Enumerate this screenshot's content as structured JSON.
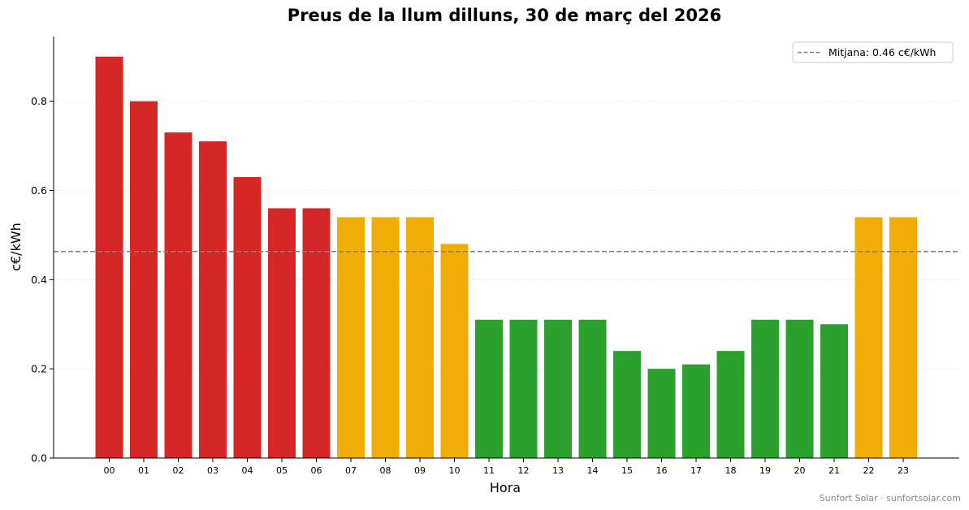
{
  "chart_data": {
    "type": "bar",
    "title": "Preus de la llum dilluns, 30 de març del 2026",
    "xlabel": "Hora",
    "ylabel": "c€/kWh",
    "categories": [
      "00",
      "01",
      "02",
      "03",
      "04",
      "05",
      "06",
      "07",
      "08",
      "09",
      "10",
      "11",
      "12",
      "13",
      "14",
      "15",
      "16",
      "17",
      "18",
      "19",
      "20",
      "21",
      "22",
      "23"
    ],
    "values": [
      0.9,
      0.8,
      0.73,
      0.71,
      0.63,
      0.56,
      0.56,
      0.54,
      0.54,
      0.54,
      0.48,
      0.31,
      0.31,
      0.31,
      0.31,
      0.24,
      0.2,
      0.21,
      0.24,
      0.31,
      0.31,
      0.3,
      0.54,
      0.54
    ],
    "bar_colors": [
      "#d62728",
      "#d62728",
      "#d62728",
      "#d62728",
      "#d62728",
      "#d62728",
      "#d62728",
      "#f0ad05",
      "#f0ad05",
      "#f0ad05",
      "#f0ad05",
      "#2ca02c",
      "#2ca02c",
      "#2ca02c",
      "#2ca02c",
      "#2ca02c",
      "#2ca02c",
      "#2ca02c",
      "#2ca02c",
      "#2ca02c",
      "#2ca02c",
      "#2ca02c",
      "#f0ad05",
      "#f0ad05"
    ],
    "ylim": [
      0,
      0.945
    ],
    "yticks": [
      0.0,
      0.2,
      0.4,
      0.6,
      0.8
    ],
    "ytick_labels": [
      "0.0",
      "0.2",
      "0.4",
      "0.6",
      "0.8"
    ],
    "grid": "y-dotted",
    "average": {
      "value": 0.463,
      "label": "Mitjana: 0.46 c€/kWh",
      "color": "#808080"
    },
    "legend_position": "top-right"
  },
  "footer": {
    "credit": "Sunfort Solar · sunfortsolar.com"
  }
}
